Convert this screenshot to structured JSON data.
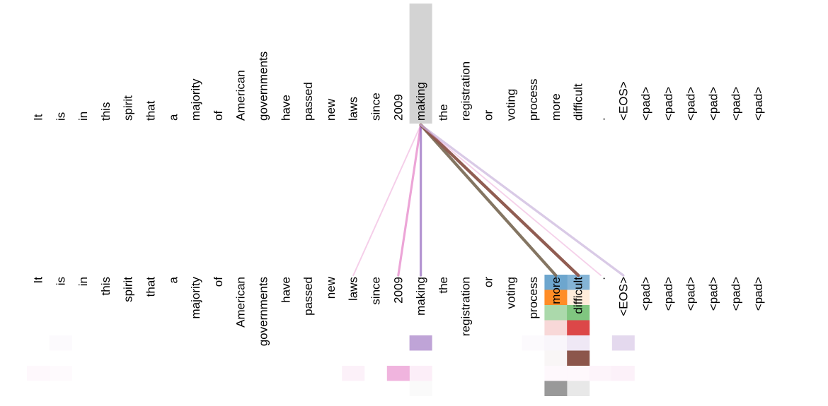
{
  "tokens": [
    "It",
    "is",
    "in",
    "this",
    "spirit",
    "that",
    "a",
    "majority",
    "of",
    "American",
    "governments",
    "have",
    "passed",
    "new",
    "laws",
    "since",
    "2009",
    "making",
    "the",
    "registration",
    "or",
    "voting",
    "process",
    "more",
    "difficult",
    ".",
    "<EOS>",
    "<pad>",
    "<pad>",
    "<pad>",
    "<pad>",
    "<pad>",
    "<pad>"
  ],
  "selected_token_index": 17,
  "highlight_color": "#d3d3d3",
  "attention_heads": [
    {
      "color": "#1f77b4"
    },
    {
      "color": "#ff7f0e"
    },
    {
      "color": "#2ca02c"
    },
    {
      "color": "#d62728"
    },
    {
      "color": "#9467bd"
    },
    {
      "color": "#8c564b"
    },
    {
      "color": "#e377c2"
    },
    {
      "color": "#7f7f7f"
    }
  ],
  "attention_links": [
    {
      "target": 14,
      "color": "#e377c2",
      "weight": 0.15
    },
    {
      "target": 16,
      "color": "#e377c2",
      "weight": 0.55
    },
    {
      "target": 17,
      "color": "#9467bd",
      "weight": 0.6
    },
    {
      "target": 23,
      "color": "#7a6a55",
      "weight": 0.9
    },
    {
      "target": 24,
      "color": "#8c564b",
      "weight": 0.95
    },
    {
      "target": 25,
      "color": "#e377c2",
      "weight": 0.12
    },
    {
      "target": 26,
      "color": "#c9b4dc",
      "weight": 0.6
    }
  ],
  "attention_cells": [
    {
      "token": 23,
      "head": 0,
      "color": "#1f77b4",
      "alpha": 0.65
    },
    {
      "token": 24,
      "head": 0,
      "color": "#1f77b4",
      "alpha": 0.55
    },
    {
      "token": 23,
      "head": 1,
      "color": "#ff7f0e",
      "alpha": 0.9
    },
    {
      "token": 24,
      "head": 1,
      "color": "#ff7f0e",
      "alpha": 0.15
    },
    {
      "token": 23,
      "head": 2,
      "color": "#2ca02c",
      "alpha": 0.4
    },
    {
      "token": 24,
      "head": 2,
      "color": "#2ca02c",
      "alpha": 0.6
    },
    {
      "token": 23,
      "head": 3,
      "color": "#d62728",
      "alpha": 0.18
    },
    {
      "token": 24,
      "head": 3,
      "color": "#d62728",
      "alpha": 0.85
    },
    {
      "token": 1,
      "head": 4,
      "color": "#9467bd",
      "alpha": 0.03
    },
    {
      "token": 17,
      "head": 4,
      "color": "#9467bd",
      "alpha": 0.6
    },
    {
      "token": 22,
      "head": 4,
      "color": "#9467bd",
      "alpha": 0.03
    },
    {
      "token": 23,
      "head": 4,
      "color": "#9467bd",
      "alpha": 0.06
    },
    {
      "token": 24,
      "head": 4,
      "color": "#9467bd",
      "alpha": 0.15
    },
    {
      "token": 26,
      "head": 4,
      "color": "#9467bd",
      "alpha": 0.25
    },
    {
      "token": 23,
      "head": 5,
      "color": "#8c564b",
      "alpha": 0.05
    },
    {
      "token": 24,
      "head": 5,
      "color": "#8c564b",
      "alpha": 1.0
    },
    {
      "token": 0,
      "head": 6,
      "color": "#e377c2",
      "alpha": 0.05
    },
    {
      "token": 1,
      "head": 6,
      "color": "#e377c2",
      "alpha": 0.04
    },
    {
      "token": 14,
      "head": 6,
      "color": "#e377c2",
      "alpha": 0.1
    },
    {
      "token": 16,
      "head": 6,
      "color": "#e377c2",
      "alpha": 0.55
    },
    {
      "token": 17,
      "head": 6,
      "color": "#e377c2",
      "alpha": 0.12
    },
    {
      "token": 23,
      "head": 6,
      "color": "#e377c2",
      "alpha": 0.05
    },
    {
      "token": 24,
      "head": 6,
      "color": "#e377c2",
      "alpha": 0.05
    },
    {
      "token": 25,
      "head": 6,
      "color": "#e377c2",
      "alpha": 0.08
    },
    {
      "token": 26,
      "head": 6,
      "color": "#e377c2",
      "alpha": 0.1
    },
    {
      "token": 17,
      "head": 7,
      "color": "#7f7f7f",
      "alpha": 0.04
    },
    {
      "token": 23,
      "head": 7,
      "color": "#7f7f7f",
      "alpha": 0.8
    },
    {
      "token": 24,
      "head": 7,
      "color": "#7f7f7f",
      "alpha": 0.18
    }
  ]
}
